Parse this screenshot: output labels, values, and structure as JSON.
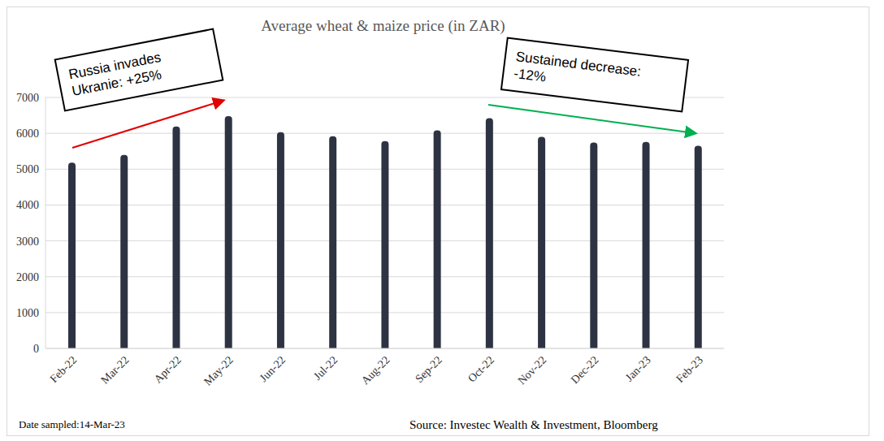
{
  "chart_data": {
    "type": "bar",
    "title": "Average wheat & maize price (in ZAR)",
    "categories": [
      "Feb-22",
      "Mar-22",
      "Apr-22",
      "May-22",
      "Jun-22",
      "Jul-22",
      "Aug-22",
      "Sep-22",
      "Oct-22",
      "Nov-22",
      "Dec-22",
      "Jan-23",
      "Feb-23"
    ],
    "values": [
      5180,
      5400,
      6190,
      6480,
      6030,
      5920,
      5780,
      6080,
      6420,
      5900,
      5740,
      5760,
      5650
    ],
    "color": "#2d3343",
    "ylim": [
      0,
      7000
    ],
    "yticks": [
      0,
      1000,
      2000,
      3000,
      4000,
      5000,
      6000,
      7000
    ],
    "grid": true,
    "annotations": [
      "Russia invades Ukranie: +25%",
      "Sustained decrease: -12%"
    ],
    "footnote": "Date sampled:14-Mar-23",
    "source": "Source: Investec Wealth & Investment, Bloomberg"
  }
}
